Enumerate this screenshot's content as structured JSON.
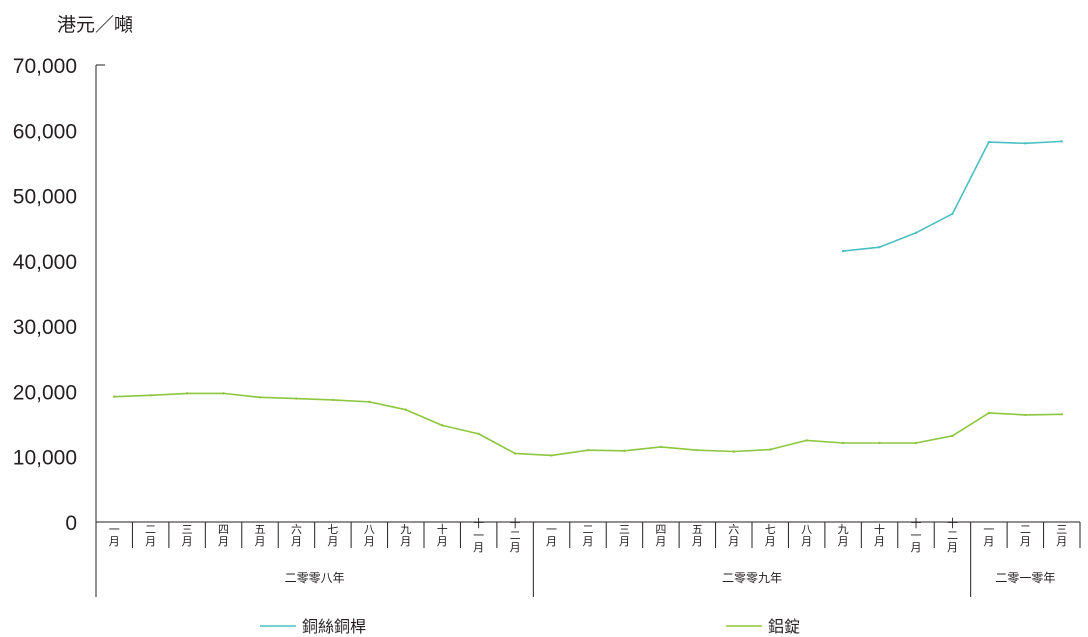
{
  "chart_data": {
    "type": "line",
    "unit_label": "港元／噸",
    "y_ticks": [
      "0",
      "10,000",
      "20,000",
      "30,000",
      "40,000",
      "50,000",
      "60,000",
      "70,000"
    ],
    "ylim": [
      0,
      70000
    ],
    "categories": [
      "一月",
      "二月",
      "三月",
      "四月",
      "五月",
      "六月",
      "七月",
      "八月",
      "九月",
      "十月",
      "十一月",
      "十二月",
      "一月",
      "二月",
      "三月",
      "四月",
      "五月",
      "六月",
      "七月",
      "八月",
      "九月",
      "十月",
      "十一月",
      "十二月",
      "一月",
      "二月",
      "三月"
    ],
    "years": [
      {
        "label": "二零零八年",
        "start": 0,
        "end": 12
      },
      {
        "label": "二零零九年",
        "start": 12,
        "end": 24
      },
      {
        "label": "二零一零年",
        "start": 24,
        "end": 27
      }
    ],
    "series": [
      {
        "name": "銅絲銅桿",
        "color": "#4bbfc3",
        "values": [
          null,
          null,
          null,
          null,
          null,
          null,
          null,
          null,
          null,
          null,
          null,
          null,
          null,
          null,
          null,
          null,
          null,
          null,
          null,
          null,
          41500,
          42100,
          44300,
          47200,
          58200,
          58000,
          58300
        ]
      },
      {
        "name": "鋁錠",
        "color": "#8dc63f",
        "values": [
          19200,
          19400,
          19700,
          19700,
          19100,
          18900,
          18700,
          18400,
          17200,
          14800,
          13500,
          10500,
          10200,
          11000,
          10900,
          11500,
          11000,
          10800,
          11100,
          12500,
          12100,
          12100,
          12100,
          13200,
          16700,
          16400,
          16500
        ]
      }
    ],
    "legend_position": "bottom"
  }
}
